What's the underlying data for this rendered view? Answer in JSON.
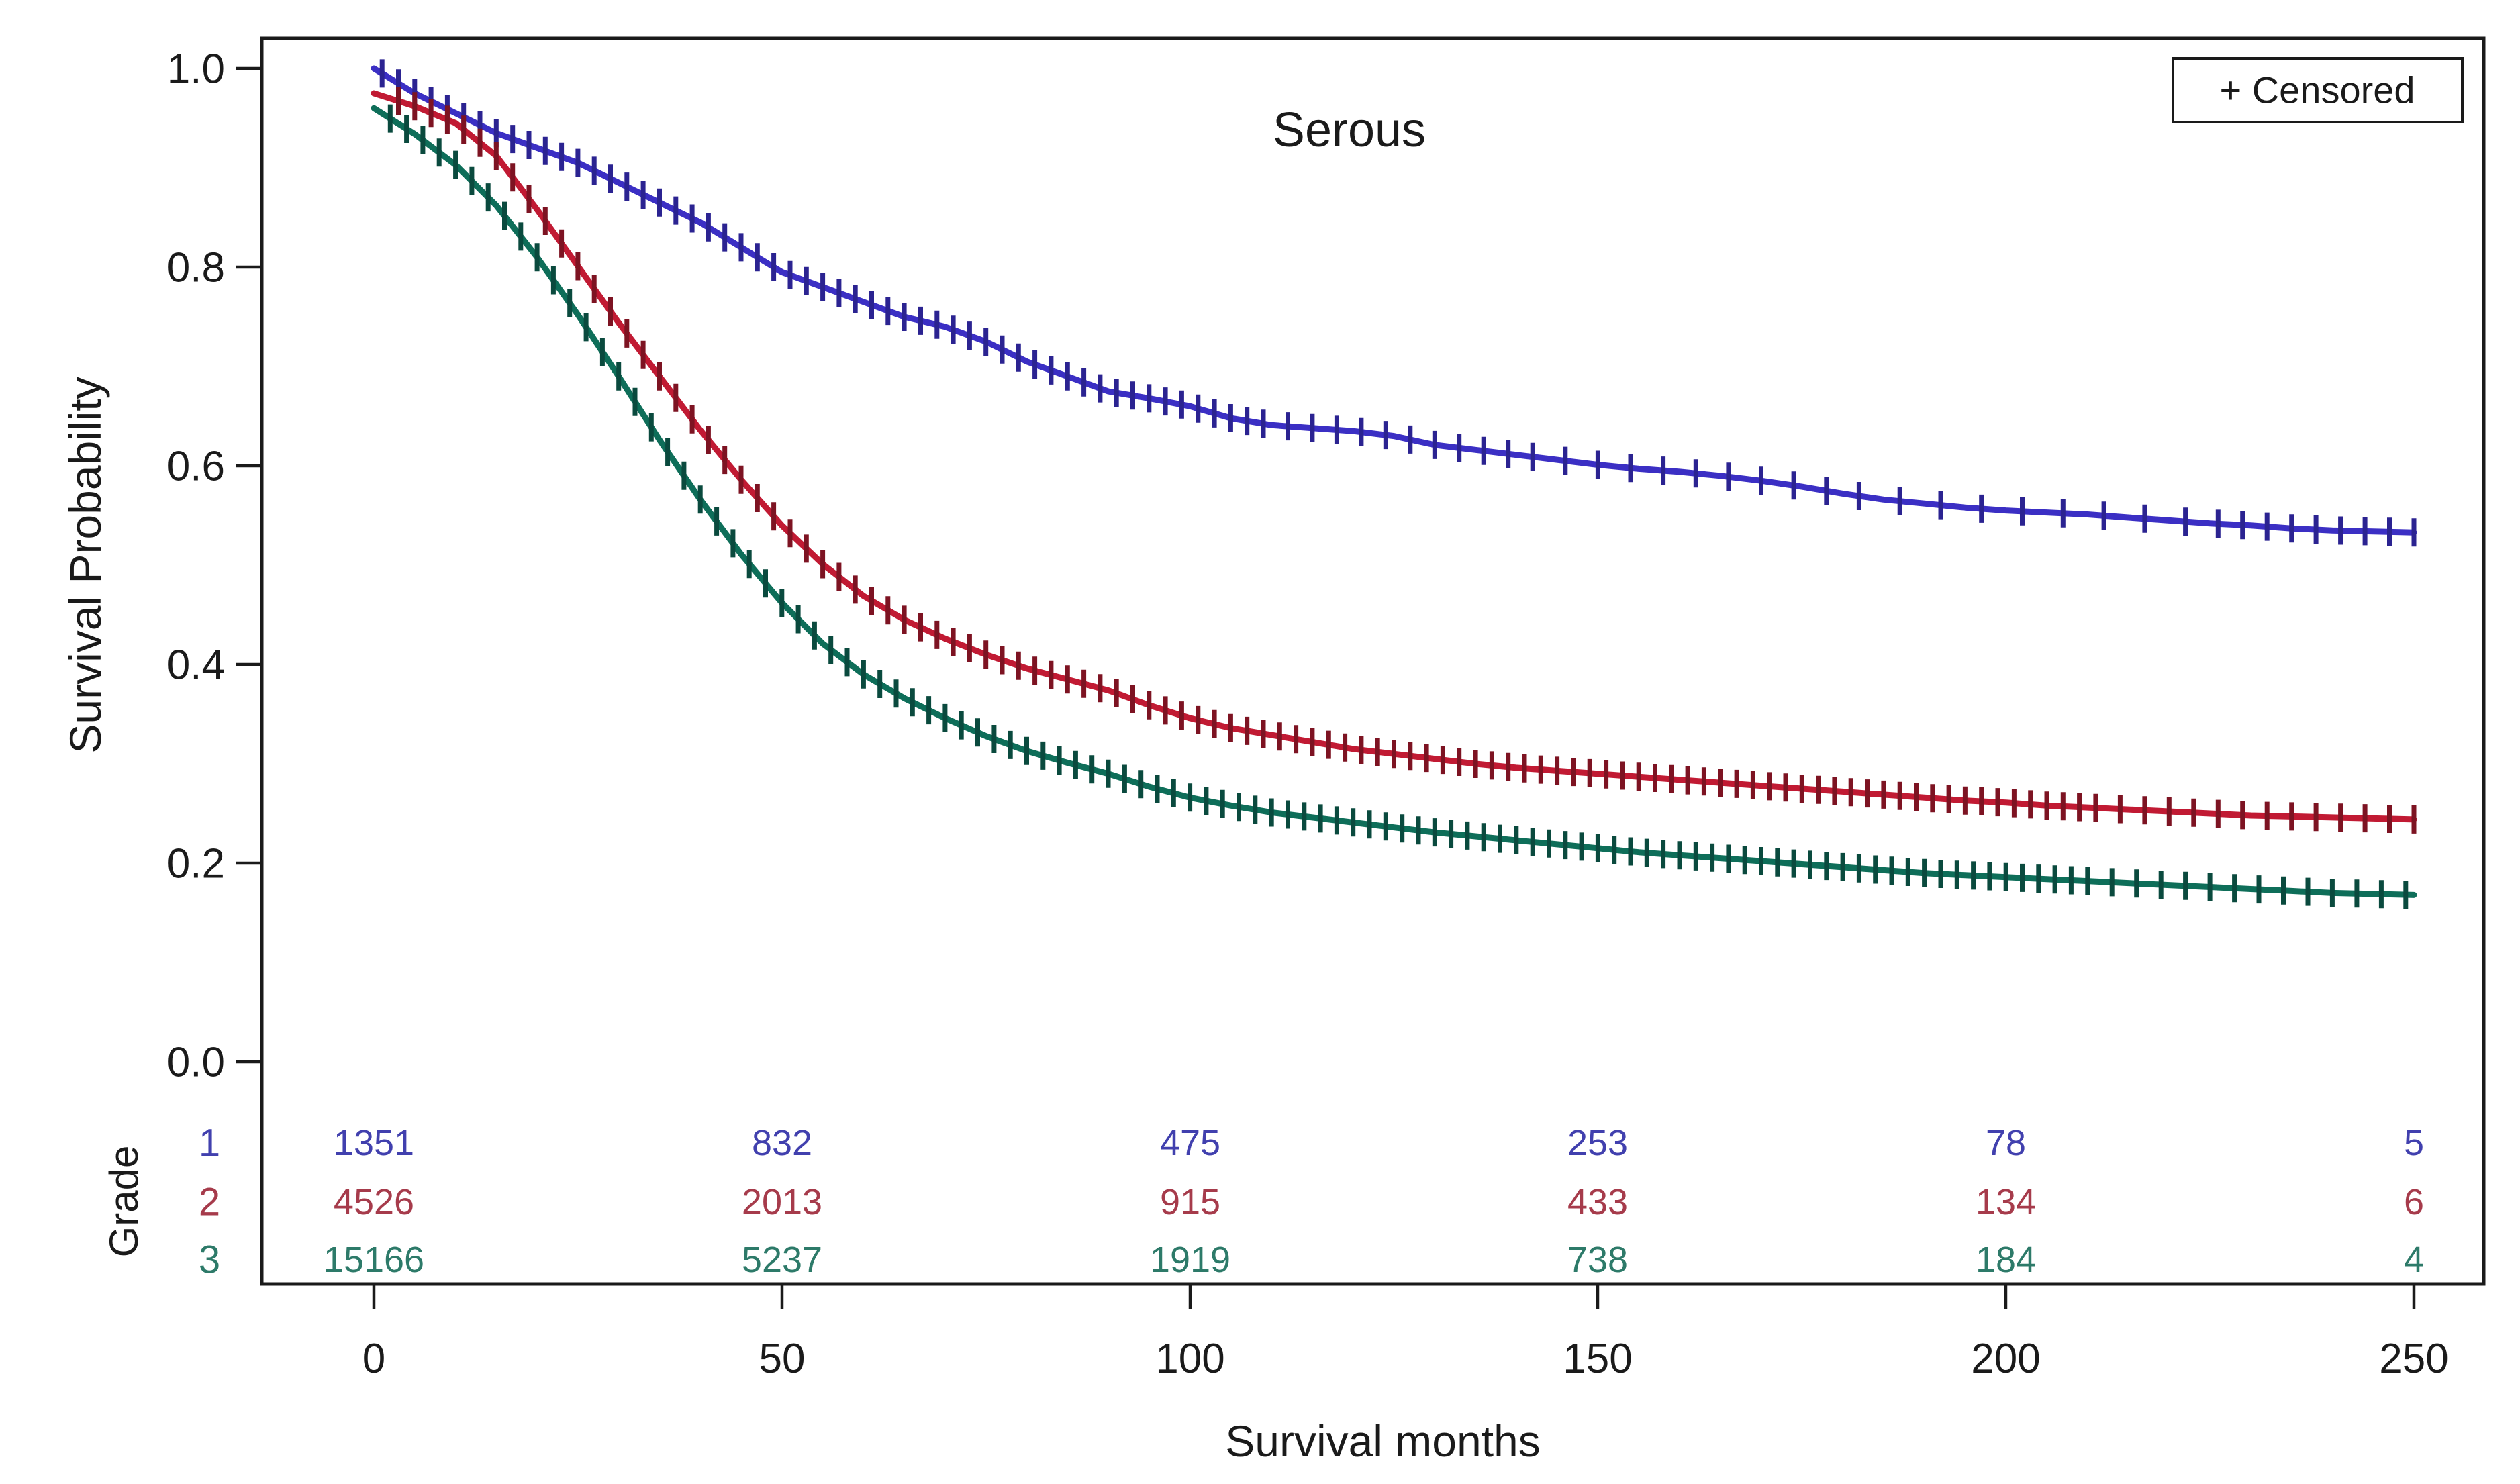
{
  "chart_data": {
    "type": "line",
    "subtype": "kaplan-meier-survival",
    "title": "Serous",
    "xlabel": "Survival months",
    "ylabel": "Survival Probability",
    "legend_label": "+ Censored",
    "legend_position": "top-right",
    "grid": false,
    "xlim": [
      0,
      250
    ],
    "ylim": [
      0.0,
      1.0
    ],
    "x_ticks": [
      "0",
      "50",
      "100",
      "150",
      "200",
      "250"
    ],
    "y_ticks": [
      "1.0",
      "0.8",
      "0.6",
      "0.4",
      "0.2",
      "0.0"
    ],
    "series": [
      {
        "name": "Grade 1",
        "color": "#3b2fc4",
        "censor_color": "#2b2391",
        "text_color": "#4140ae",
        "points": [
          [
            0,
            1.0
          ],
          [
            5,
            0.975
          ],
          [
            10,
            0.955
          ],
          [
            15,
            0.935
          ],
          [
            20,
            0.92
          ],
          [
            25,
            0.905
          ],
          [
            30,
            0.885
          ],
          [
            35,
            0.865
          ],
          [
            40,
            0.845
          ],
          [
            45,
            0.82
          ],
          [
            50,
            0.795
          ],
          [
            55,
            0.78
          ],
          [
            60,
            0.765
          ],
          [
            65,
            0.75
          ],
          [
            70,
            0.74
          ],
          [
            75,
            0.725
          ],
          [
            80,
            0.705
          ],
          [
            85,
            0.69
          ],
          [
            90,
            0.675
          ],
          [
            95,
            0.668
          ],
          [
            100,
            0.66
          ],
          [
            105,
            0.648
          ],
          [
            110,
            0.641
          ],
          [
            115,
            0.638
          ],
          [
            120,
            0.635
          ],
          [
            125,
            0.63
          ],
          [
            130,
            0.621
          ],
          [
            135,
            0.616
          ],
          [
            140,
            0.611
          ],
          [
            145,
            0.606
          ],
          [
            150,
            0.601
          ],
          [
            155,
            0.597
          ],
          [
            160,
            0.594
          ],
          [
            165,
            0.59
          ],
          [
            170,
            0.585
          ],
          [
            175,
            0.579
          ],
          [
            180,
            0.572
          ],
          [
            185,
            0.566
          ],
          [
            190,
            0.562
          ],
          [
            195,
            0.558
          ],
          [
            200,
            0.555
          ],
          [
            205,
            0.553
          ],
          [
            210,
            0.551
          ],
          [
            215,
            0.548
          ],
          [
            220,
            0.545
          ],
          [
            225,
            0.542
          ],
          [
            230,
            0.54
          ],
          [
            235,
            0.537
          ],
          [
            240,
            0.535
          ],
          [
            245,
            0.534
          ],
          [
            250,
            0.533
          ]
        ],
        "censor_segments": [
          [
            1,
            109,
            2
          ],
          [
            112,
            142,
            3
          ],
          [
            146,
            182,
            4
          ],
          [
            187,
            222,
            5
          ],
          [
            226,
            250,
            3
          ]
        ]
      },
      {
        "name": "Grade 2",
        "color": "#c11a33",
        "censor_color": "#7d1322",
        "text_color": "#a63b4b",
        "points": [
          [
            0,
            0.975
          ],
          [
            5,
            0.962
          ],
          [
            10,
            0.945
          ],
          [
            15,
            0.912
          ],
          [
            20,
            0.858
          ],
          [
            25,
            0.801
          ],
          [
            30,
            0.744
          ],
          [
            35,
            0.69
          ],
          [
            40,
            0.636
          ],
          [
            45,
            0.586
          ],
          [
            50,
            0.54
          ],
          [
            55,
            0.501
          ],
          [
            60,
            0.469
          ],
          [
            65,
            0.445
          ],
          [
            70,
            0.426
          ],
          [
            75,
            0.41
          ],
          [
            80,
            0.396
          ],
          [
            85,
            0.385
          ],
          [
            90,
            0.374
          ],
          [
            95,
            0.359
          ],
          [
            100,
            0.346
          ],
          [
            105,
            0.336
          ],
          [
            110,
            0.329
          ],
          [
            115,
            0.322
          ],
          [
            120,
            0.315
          ],
          [
            125,
            0.31
          ],
          [
            130,
            0.305
          ],
          [
            135,
            0.3
          ],
          [
            140,
            0.296
          ],
          [
            145,
            0.293
          ],
          [
            150,
            0.29
          ],
          [
            155,
            0.287
          ],
          [
            160,
            0.284
          ],
          [
            165,
            0.281
          ],
          [
            170,
            0.278
          ],
          [
            175,
            0.275
          ],
          [
            180,
            0.272
          ],
          [
            185,
            0.269
          ],
          [
            190,
            0.266
          ],
          [
            195,
            0.263
          ],
          [
            200,
            0.261
          ],
          [
            205,
            0.258
          ],
          [
            210,
            0.256
          ],
          [
            215,
            0.254
          ],
          [
            220,
            0.252
          ],
          [
            225,
            0.25
          ],
          [
            230,
            0.248
          ],
          [
            235,
            0.247
          ],
          [
            240,
            0.246
          ],
          [
            245,
            0.245
          ],
          [
            250,
            0.244
          ]
        ],
        "censor_segments": [
          [
            3,
            211,
            2
          ],
          [
            214,
            250,
            3
          ]
        ]
      },
      {
        "name": "Grade 3",
        "color": "#0e6e59",
        "censor_color": "#0a4a3e",
        "text_color": "#2d7a69",
        "points": [
          [
            0,
            0.96
          ],
          [
            5,
            0.934
          ],
          [
            10,
            0.903
          ],
          [
            15,
            0.862
          ],
          [
            20,
            0.81
          ],
          [
            25,
            0.752
          ],
          [
            30,
            0.69
          ],
          [
            35,
            0.626
          ],
          [
            40,
            0.566
          ],
          [
            45,
            0.511
          ],
          [
            50,
            0.462
          ],
          [
            55,
            0.421
          ],
          [
            60,
            0.39
          ],
          [
            65,
            0.366
          ],
          [
            70,
            0.346
          ],
          [
            75,
            0.328
          ],
          [
            80,
            0.313
          ],
          [
            85,
            0.301
          ],
          [
            90,
            0.29
          ],
          [
            95,
            0.277
          ],
          [
            100,
            0.266
          ],
          [
            105,
            0.258
          ],
          [
            110,
            0.251
          ],
          [
            115,
            0.246
          ],
          [
            120,
            0.241
          ],
          [
            125,
            0.236
          ],
          [
            130,
            0.231
          ],
          [
            135,
            0.227
          ],
          [
            140,
            0.223
          ],
          [
            145,
            0.219
          ],
          [
            150,
            0.215
          ],
          [
            155,
            0.211
          ],
          [
            160,
            0.208
          ],
          [
            165,
            0.205
          ],
          [
            170,
            0.202
          ],
          [
            175,
            0.199
          ],
          [
            180,
            0.196
          ],
          [
            185,
            0.193
          ],
          [
            190,
            0.19
          ],
          [
            195,
            0.188
          ],
          [
            200,
            0.186
          ],
          [
            205,
            0.184
          ],
          [
            210,
            0.182
          ],
          [
            215,
            0.18
          ],
          [
            220,
            0.178
          ],
          [
            225,
            0.176
          ],
          [
            230,
            0.174
          ],
          [
            235,
            0.172
          ],
          [
            240,
            0.17
          ],
          [
            245,
            0.169
          ],
          [
            250,
            0.168
          ]
        ],
        "censor_segments": [
          [
            2,
            210,
            2
          ],
          [
            213,
            250,
            3
          ]
        ]
      }
    ],
    "at_risk": {
      "group_label": "Grade",
      "time_points": [
        0,
        50,
        100,
        150,
        200,
        250
      ],
      "rows": [
        {
          "label": "1",
          "counts": [
            "1351",
            "832",
            "475",
            "253",
            "78",
            "5"
          ]
        },
        {
          "label": "2",
          "counts": [
            "4526",
            "2013",
            "915",
            "433",
            "134",
            "6"
          ]
        },
        {
          "label": "3",
          "counts": [
            "15166",
            "5237",
            "1919",
            "738",
            "184",
            "4"
          ]
        }
      ]
    }
  }
}
